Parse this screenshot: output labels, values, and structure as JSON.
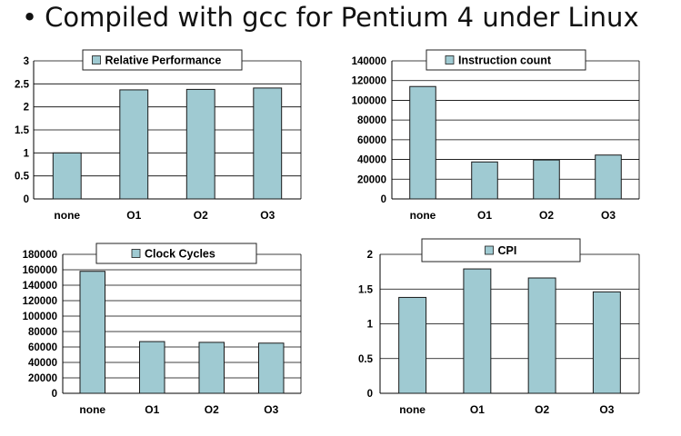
{
  "slide": {
    "bullet": "•",
    "title": "Compiled with gcc for Pentium 4 under Linux"
  },
  "colors": {
    "bar_fill": "#9fcad2",
    "bar_stroke": "#1a1a1a",
    "grid": "#000000",
    "text": "#000000"
  },
  "chart_data": [
    {
      "type": "bar",
      "title": "Relative Performance",
      "categories": [
        "none",
        "O1",
        "O2",
        "O3"
      ],
      "values": [
        1.0,
        2.37,
        2.38,
        2.41
      ],
      "ylim": [
        0,
        3
      ],
      "yticks": [
        0,
        0.5,
        1,
        1.5,
        2,
        2.5,
        3
      ],
      "ytick_labels": [
        "0",
        "0.5",
        "1",
        "1.5",
        "2",
        "2.5",
        "3"
      ],
      "grid": true,
      "legend": "top-center"
    },
    {
      "type": "bar",
      "title": "Instruction count",
      "categories": [
        "none",
        "O1",
        "O2",
        "O3"
      ],
      "values": [
        114000,
        37500,
        39500,
        44500
      ],
      "ylim": [
        0,
        140000
      ],
      "yticks": [
        0,
        20000,
        40000,
        60000,
        80000,
        100000,
        120000,
        140000
      ],
      "ytick_labels": [
        "0",
        "20000",
        "40000",
        "60000",
        "80000",
        "100000",
        "120000",
        "140000"
      ],
      "grid": true,
      "legend": "top-center"
    },
    {
      "type": "bar",
      "title": "Clock Cycles",
      "categories": [
        "none",
        "O1",
        "O2",
        "O3"
      ],
      "values": [
        158000,
        67000,
        66000,
        65000
      ],
      "ylim": [
        0,
        180000
      ],
      "yticks": [
        0,
        20000,
        40000,
        60000,
        80000,
        100000,
        120000,
        140000,
        160000,
        180000
      ],
      "ytick_labels": [
        "0",
        "20000",
        "40000",
        "60000",
        "80000",
        "100000",
        "120000",
        "140000",
        "160000",
        "180000"
      ],
      "grid": true,
      "legend": "top-center"
    },
    {
      "type": "bar",
      "title": "CPI",
      "categories": [
        "none",
        "O1",
        "O2",
        "O3"
      ],
      "values": [
        1.38,
        1.79,
        1.66,
        1.46
      ],
      "ylim": [
        0,
        2
      ],
      "yticks": [
        0,
        0.5,
        1,
        1.5,
        2
      ],
      "ytick_labels": [
        "0",
        "0.5",
        "1",
        "1.5",
        "2"
      ],
      "grid": true,
      "legend": "top-center"
    }
  ]
}
